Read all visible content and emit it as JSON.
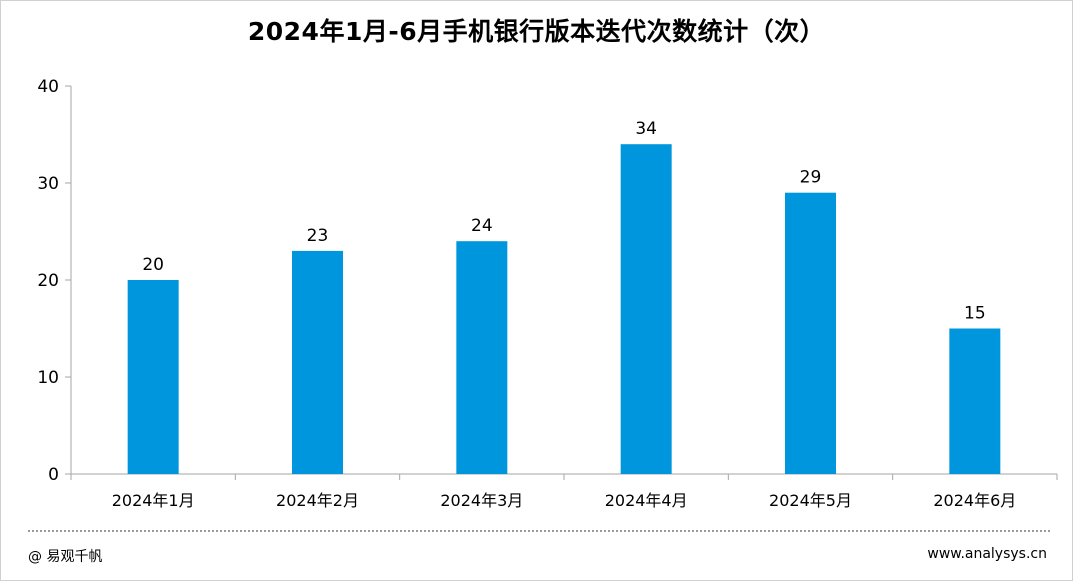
{
  "title": "2024年1月-6月手机银行版本迭代次数统计（次）",
  "footer": {
    "source": "@ 易观千帆",
    "website": "www.analysys.cn"
  },
  "chart_data": {
    "type": "bar",
    "title": "2024年1月-6月手机银行版本迭代次数统计（次）",
    "categories": [
      "2024年1月",
      "2024年2月",
      "2024年3月",
      "2024年4月",
      "2024年5月",
      "2024年6月"
    ],
    "values": [
      20,
      23,
      24,
      34,
      29,
      15
    ],
    "data_labels": [
      "20",
      "23",
      "24",
      "34",
      "29",
      "15"
    ],
    "ylim": [
      0,
      40
    ],
    "y_ticks": [
      0,
      10,
      20,
      30,
      40
    ],
    "y_tick_labels": [
      "0",
      "10",
      "20",
      "30",
      "40"
    ],
    "grid": false,
    "legend": "none",
    "bar_color": "#0096DE"
  }
}
